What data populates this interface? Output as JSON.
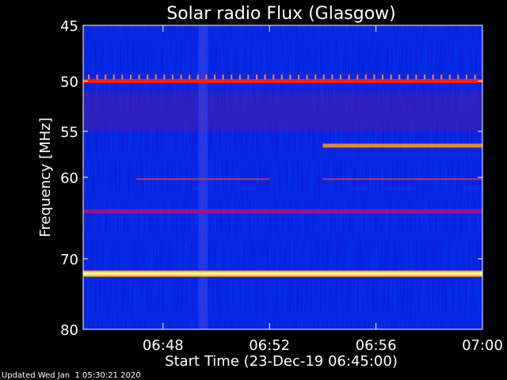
{
  "chart_data": {
    "type": "heatmap",
    "title": "Solar radio Flux (Glasgow)",
    "xlabel": "Start Time (23-Dec-19 06:45:00)",
    "ylabel": "Frequency [MHz]",
    "xlim": [
      "06:45",
      "07:00"
    ],
    "ylim": [
      45,
      80
    ],
    "y_scale": "log",
    "x_ticks": [
      "06:48",
      "06:52",
      "06:56",
      "07:00"
    ],
    "y_ticks": [
      45,
      50,
      55,
      60,
      70,
      80
    ],
    "colormap": [
      "#0000c8",
      "#8a1a78",
      "#ff2000",
      "#ffe040",
      "#ffffff"
    ],
    "bright_bands": [
      {
        "freq": 50.0,
        "intensity": "high",
        "description": "Interference band with periodic spikes"
      },
      {
        "freq": 56.5,
        "intensity": "medium",
        "start": "06:54",
        "end": "07:00"
      },
      {
        "freq": 60.2,
        "intensity": "low",
        "start": "06:47",
        "end": "06:52"
      },
      {
        "freq": 60.2,
        "intensity": "low",
        "start": "06:54",
        "end": "07:00"
      },
      {
        "freq": 64.0,
        "intensity": "medium"
      },
      {
        "freq": 72.0,
        "intensity": "very-high"
      }
    ],
    "vertical_features": [
      {
        "time": "06:49:30",
        "description": "Broad vertical band of elevated intensity"
      }
    ]
  },
  "footer": {
    "updated": "Updated Wed Jan  1 05:30:21 2020"
  }
}
